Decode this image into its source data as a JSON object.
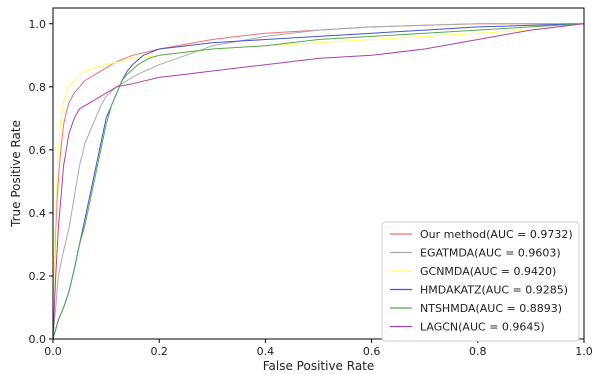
{
  "chart_data": {
    "type": "line",
    "xlabel": "False Positive Rate",
    "ylabel": "True Positive Rate",
    "xlim": [
      0,
      1
    ],
    "ylim": [
      0,
      1.05
    ],
    "xticks": [
      "0.0",
      "0.2",
      "0.4",
      "0.6",
      "0.8",
      "1.0"
    ],
    "yticks": [
      "0.0",
      "0.2",
      "0.4",
      "0.6",
      "0.8",
      "1.0"
    ],
    "legend_position": "lower-right",
    "grid": false,
    "series": [
      {
        "name": "Our method(AUC = 0.9732)",
        "color": "#f07070",
        "x": [
          0,
          0.002,
          0.005,
          0.008,
          0.012,
          0.016,
          0.02,
          0.025,
          0.03,
          0.04,
          0.05,
          0.06,
          0.08,
          0.1,
          0.12,
          0.15,
          0.2,
          0.3,
          0.4,
          0.5,
          0.6,
          0.7,
          0.8,
          0.9,
          1.0
        ],
        "y": [
          0,
          0.2,
          0.35,
          0.45,
          0.55,
          0.62,
          0.68,
          0.72,
          0.75,
          0.78,
          0.8,
          0.82,
          0.84,
          0.86,
          0.88,
          0.9,
          0.92,
          0.95,
          0.97,
          0.98,
          0.99,
          0.995,
          1.0,
          1.0,
          1.0
        ]
      },
      {
        "name": "EGATMDA(AUC = 0.9603)",
        "color": "#aaaaaa",
        "x": [
          0,
          0.005,
          0.01,
          0.02,
          0.03,
          0.04,
          0.05,
          0.06,
          0.07,
          0.08,
          0.09,
          0.1,
          0.12,
          0.14,
          0.16,
          0.2,
          0.25,
          0.3,
          0.4,
          0.5,
          0.6,
          0.7,
          0.8,
          0.9,
          1.0
        ],
        "y": [
          0,
          0.1,
          0.2,
          0.28,
          0.35,
          0.45,
          0.55,
          0.62,
          0.66,
          0.7,
          0.74,
          0.77,
          0.8,
          0.82,
          0.84,
          0.87,
          0.9,
          0.93,
          0.96,
          0.98,
          0.99,
          0.995,
          1.0,
          1.0,
          1.0
        ]
      },
      {
        "name": "GCNMDA(AUC = 0.9420)",
        "color": "#ffff66",
        "x": [
          0,
          0.003,
          0.006,
          0.01,
          0.015,
          0.02,
          0.025,
          0.03,
          0.04,
          0.05,
          0.06,
          0.08,
          0.1,
          0.15,
          0.2,
          0.3,
          0.4,
          0.5,
          0.6,
          0.7,
          0.8,
          0.9,
          0.95,
          0.99,
          1.0
        ],
        "y": [
          0,
          0.3,
          0.45,
          0.6,
          0.7,
          0.75,
          0.78,
          0.8,
          0.82,
          0.84,
          0.85,
          0.86,
          0.87,
          0.89,
          0.9,
          0.92,
          0.93,
          0.94,
          0.95,
          0.96,
          0.97,
          0.98,
          0.99,
          1.0,
          1.0
        ]
      },
      {
        "name": "HMDAKATZ(AUC = 0.9285)",
        "color": "#4455cc",
        "x": [
          0,
          0.01,
          0.02,
          0.03,
          0.04,
          0.05,
          0.06,
          0.07,
          0.08,
          0.09,
          0.1,
          0.11,
          0.12,
          0.13,
          0.14,
          0.15,
          0.17,
          0.2,
          0.3,
          0.4,
          0.5,
          0.6,
          0.7,
          0.8,
          1.0
        ],
        "y": [
          0,
          0.06,
          0.1,
          0.15,
          0.22,
          0.3,
          0.38,
          0.46,
          0.54,
          0.62,
          0.7,
          0.74,
          0.78,
          0.82,
          0.85,
          0.87,
          0.9,
          0.92,
          0.94,
          0.95,
          0.96,
          0.97,
          0.98,
          0.99,
          1.0
        ]
      },
      {
        "name": "NTSHMDA(AUC = 0.8893)",
        "color": "#55aa55",
        "x": [
          0,
          0.01,
          0.02,
          0.03,
          0.04,
          0.05,
          0.06,
          0.07,
          0.08,
          0.09,
          0.1,
          0.11,
          0.12,
          0.13,
          0.14,
          0.16,
          0.18,
          0.2,
          0.3,
          0.4,
          0.5,
          0.6,
          0.7,
          0.8,
          1.0
        ],
        "y": [
          0,
          0.06,
          0.1,
          0.15,
          0.22,
          0.3,
          0.36,
          0.44,
          0.52,
          0.6,
          0.68,
          0.74,
          0.78,
          0.82,
          0.84,
          0.87,
          0.89,
          0.9,
          0.92,
          0.93,
          0.95,
          0.96,
          0.97,
          0.98,
          1.0
        ]
      },
      {
        "name": "LAGCN(AUC = 0.9645)",
        "color": "#aa44aa",
        "x": [
          0,
          0.005,
          0.01,
          0.015,
          0.02,
          0.03,
          0.04,
          0.05,
          0.06,
          0.08,
          0.1,
          0.12,
          0.15,
          0.2,
          0.25,
          0.3,
          0.4,
          0.5,
          0.6,
          0.7,
          0.8,
          0.9,
          1.0
        ],
        "y": [
          0,
          0.2,
          0.35,
          0.45,
          0.55,
          0.65,
          0.7,
          0.73,
          0.74,
          0.76,
          0.78,
          0.8,
          0.81,
          0.83,
          0.84,
          0.85,
          0.87,
          0.89,
          0.9,
          0.92,
          0.95,
          0.98,
          1.0
        ]
      }
    ]
  }
}
